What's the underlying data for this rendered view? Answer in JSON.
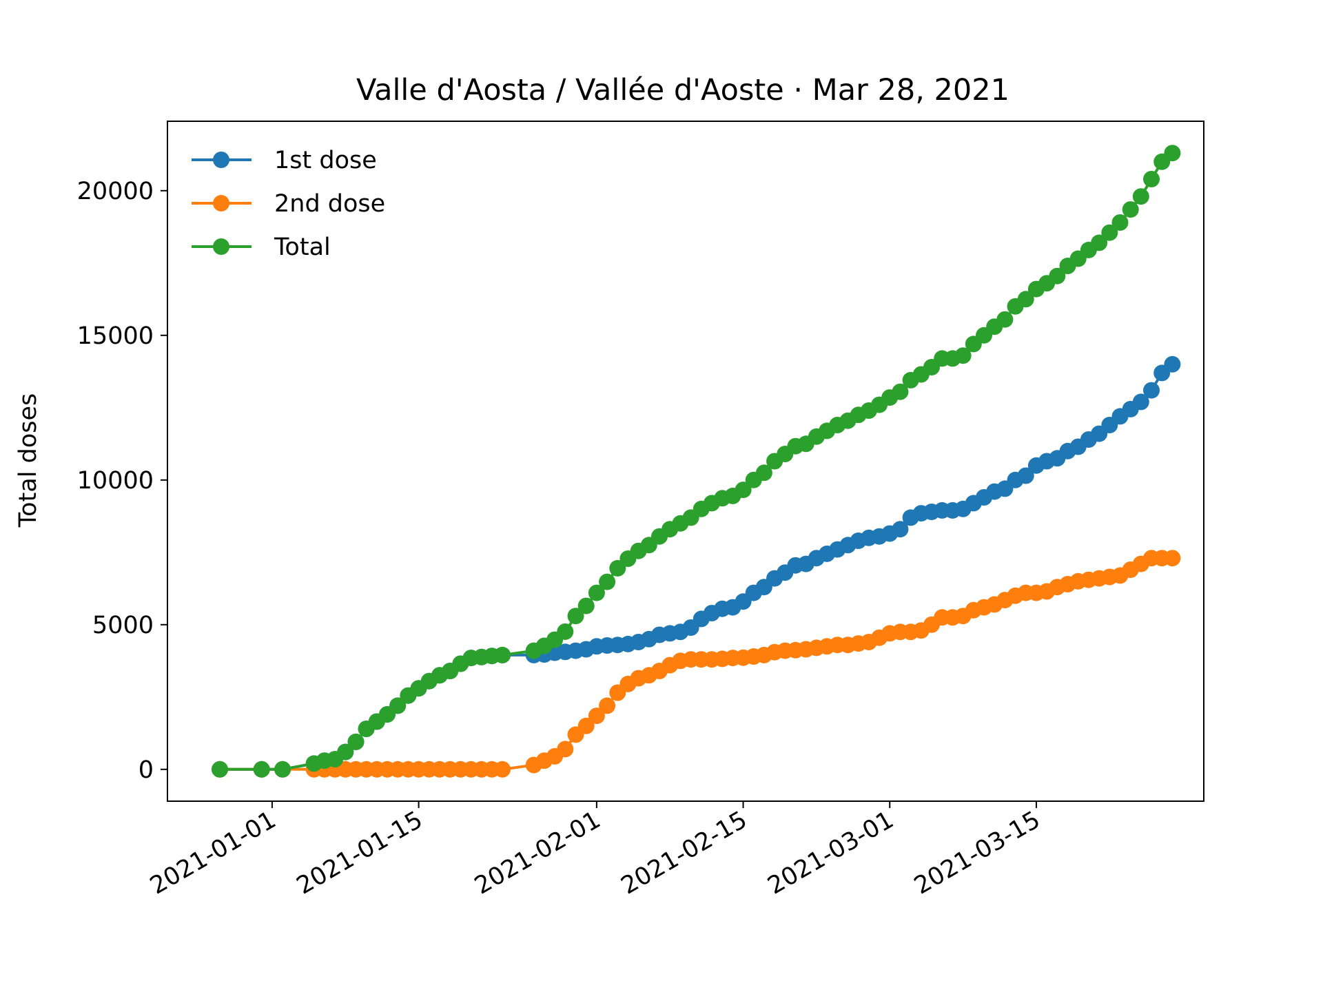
{
  "chart_data": {
    "type": "line",
    "title": "Valle d'Aosta / Vallée d'Aoste · Mar 28, 2021",
    "xlabel": "",
    "ylabel": "Total doses",
    "x_type": "date",
    "xlim": [
      "2020-12-22",
      "2021-03-31"
    ],
    "ylim": [
      -1100,
      22400
    ],
    "xticks": [
      "2021-01-01",
      "2021-01-15",
      "2021-02-01",
      "2021-02-15",
      "2021-03-01",
      "2021-03-15"
    ],
    "yticks": [
      0,
      5000,
      10000,
      15000,
      20000
    ],
    "grid": false,
    "legend": "upper-left",
    "x": [
      "2020-12-27",
      "2020-12-31",
      "2021-01-02",
      "2021-01-05",
      "2021-01-06",
      "2021-01-07",
      "2021-01-08",
      "2021-01-09",
      "2021-01-10",
      "2021-01-11",
      "2021-01-12",
      "2021-01-13",
      "2021-01-14",
      "2021-01-15",
      "2021-01-16",
      "2021-01-17",
      "2021-01-18",
      "2021-01-19",
      "2021-01-20",
      "2021-01-21",
      "2021-01-22",
      "2021-01-23",
      "2021-01-26",
      "2021-01-27",
      "2021-01-28",
      "2021-01-29",
      "2021-01-30",
      "2021-01-31",
      "2021-02-01",
      "2021-02-02",
      "2021-02-03",
      "2021-02-04",
      "2021-02-05",
      "2021-02-06",
      "2021-02-07",
      "2021-02-08",
      "2021-02-09",
      "2021-02-10",
      "2021-02-11",
      "2021-02-12",
      "2021-02-13",
      "2021-02-14",
      "2021-02-15",
      "2021-02-16",
      "2021-02-17",
      "2021-02-18",
      "2021-02-19",
      "2021-02-20",
      "2021-02-21",
      "2021-02-22",
      "2021-02-23",
      "2021-02-24",
      "2021-02-25",
      "2021-02-26",
      "2021-02-27",
      "2021-02-28",
      "2021-03-01",
      "2021-03-02",
      "2021-03-03",
      "2021-03-04",
      "2021-03-05",
      "2021-03-06",
      "2021-03-07",
      "2021-03-08",
      "2021-03-09",
      "2021-03-10",
      "2021-03-11",
      "2021-03-12",
      "2021-03-13",
      "2021-03-14",
      "2021-03-15",
      "2021-03-16",
      "2021-03-17",
      "2021-03-18",
      "2021-03-19",
      "2021-03-20",
      "2021-03-21",
      "2021-03-22",
      "2021-03-23",
      "2021-03-24",
      "2021-03-25",
      "2021-03-26",
      "2021-03-27",
      "2021-03-28"
    ],
    "series": [
      {
        "name": "1st dose",
        "color": "#1f77b4",
        "values": [
          0,
          0,
          0,
          200,
          300,
          350,
          600,
          950,
          1400,
          1650,
          1900,
          2200,
          2550,
          2800,
          3050,
          3250,
          3400,
          3650,
          3850,
          3880,
          3920,
          3950,
          3950,
          3970,
          4030,
          4060,
          4100,
          4150,
          4250,
          4280,
          4300,
          4330,
          4400,
          4500,
          4650,
          4700,
          4750,
          4900,
          5200,
          5400,
          5550,
          5600,
          5800,
          6100,
          6300,
          6600,
          6800,
          7050,
          7100,
          7300,
          7450,
          7600,
          7750,
          7900,
          8000,
          8050,
          8150,
          8300,
          8700,
          8850,
          8900,
          8950,
          8950,
          9000,
          9200,
          9400,
          9600,
          9700,
          10000,
          10150,
          10500,
          10650,
          10750,
          11000,
          11150,
          11400,
          11600,
          11900,
          12200,
          12450,
          12700,
          13100,
          13700,
          14000
        ]
      },
      {
        "name": "2nd dose",
        "color": "#ff7f0e",
        "values": [
          0,
          0,
          0,
          0,
          0,
          0,
          0,
          0,
          0,
          0,
          0,
          0,
          0,
          0,
          0,
          0,
          0,
          0,
          0,
          0,
          0,
          0,
          150,
          300,
          450,
          700,
          1200,
          1500,
          1850,
          2200,
          2650,
          2950,
          3150,
          3250,
          3400,
          3600,
          3750,
          3800,
          3800,
          3800,
          3820,
          3850,
          3860,
          3900,
          3950,
          4050,
          4100,
          4120,
          4150,
          4200,
          4250,
          4300,
          4300,
          4350,
          4400,
          4550,
          4700,
          4750,
          4750,
          4800,
          5000,
          5250,
          5250,
          5300,
          5500,
          5600,
          5700,
          5850,
          6000,
          6100,
          6100,
          6150,
          6300,
          6400,
          6500,
          6550,
          6600,
          6650,
          6700,
          6900,
          7100,
          7300,
          7300,
          7300
        ]
      },
      {
        "name": "Total",
        "color": "#2ca02c",
        "values": [
          0,
          0,
          0,
          200,
          300,
          350,
          600,
          950,
          1400,
          1650,
          1900,
          2200,
          2550,
          2800,
          3050,
          3250,
          3400,
          3650,
          3850,
          3880,
          3920,
          3950,
          4100,
          4270,
          4480,
          4760,
          5300,
          5650,
          6100,
          6480,
          6950,
          7280,
          7550,
          7750,
          8050,
          8300,
          8500,
          8700,
          9000,
          9200,
          9370,
          9450,
          9660,
          10000,
          10250,
          10650,
          10900,
          11170,
          11250,
          11500,
          11700,
          11900,
          12050,
          12250,
          12400,
          12600,
          12850,
          13050,
          13450,
          13650,
          13900,
          14200,
          14200,
          14300,
          14700,
          15000,
          15300,
          15550,
          16000,
          16250,
          16600,
          16800,
          17050,
          17400,
          17650,
          17950,
          18200,
          18550,
          18900,
          19350,
          19800,
          20400,
          21000,
          21300
        ]
      }
    ]
  }
}
